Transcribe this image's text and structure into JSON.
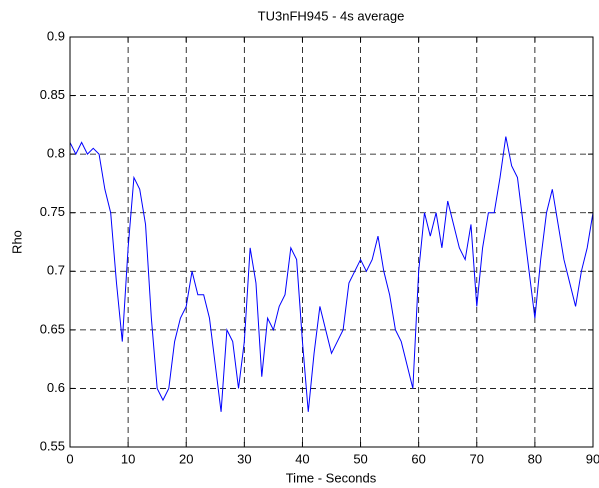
{
  "chart_data": {
    "type": "line",
    "title": "TU3nFH945 - 4s average",
    "x_label": "Time - Seconds",
    "y_label": "Rho",
    "x": [
      0,
      1,
      2,
      3,
      4,
      5,
      6,
      7,
      8,
      9,
      10,
      11,
      12,
      13,
      14,
      15,
      16,
      17,
      18,
      19,
      20,
      21,
      22,
      23,
      24,
      25,
      26,
      27,
      28,
      29,
      30,
      31,
      32,
      33,
      34,
      35,
      36,
      37,
      38,
      39,
      40,
      41,
      42,
      43,
      44,
      45,
      46,
      47,
      48,
      49,
      50,
      51,
      52,
      53,
      54,
      55,
      56,
      57,
      58,
      59,
      60,
      61,
      62,
      63,
      64,
      65,
      66,
      67,
      68,
      69,
      70,
      71,
      72,
      73,
      74,
      75,
      76,
      77,
      78,
      79,
      80,
      81,
      82,
      83,
      84,
      85,
      86,
      87,
      88,
      89,
      90
    ],
    "series": [
      {
        "name": "Rho",
        "color": "#0000ff",
        "values": [
          0.81,
          0.8,
          0.81,
          0.8,
          0.805,
          0.8,
          0.77,
          0.75,
          0.69,
          0.64,
          0.72,
          0.78,
          0.77,
          0.74,
          0.66,
          0.6,
          0.59,
          0.6,
          0.64,
          0.66,
          0.67,
          0.7,
          0.68,
          0.68,
          0.66,
          0.62,
          0.58,
          0.65,
          0.64,
          0.6,
          0.64,
          0.72,
          0.69,
          0.61,
          0.66,
          0.65,
          0.67,
          0.68,
          0.72,
          0.71,
          0.64,
          0.58,
          0.63,
          0.67,
          0.65,
          0.63,
          0.64,
          0.65,
          0.69,
          0.7,
          0.71,
          0.7,
          0.71,
          0.73,
          0.7,
          0.68,
          0.65,
          0.64,
          0.62,
          0.6,
          0.7,
          0.75,
          0.73,
          0.75,
          0.72,
          0.76,
          0.74,
          0.72,
          0.71,
          0.74,
          0.67,
          0.72,
          0.75,
          0.75,
          0.78,
          0.815,
          0.79,
          0.78,
          0.74,
          0.7,
          0.66,
          0.71,
          0.75,
          0.77,
          0.74,
          0.71,
          0.69,
          0.67,
          0.7,
          0.72,
          0.75
        ]
      }
    ],
    "xlim": [
      0,
      90
    ],
    "ylim": [
      0.55,
      0.9
    ],
    "xticks": [
      0,
      10,
      20,
      30,
      40,
      50,
      60,
      70,
      80,
      90
    ],
    "yticks": [
      0.55,
      0.6,
      0.65,
      0.7,
      0.75,
      0.8,
      0.85,
      0.9
    ],
    "grid": true
  }
}
